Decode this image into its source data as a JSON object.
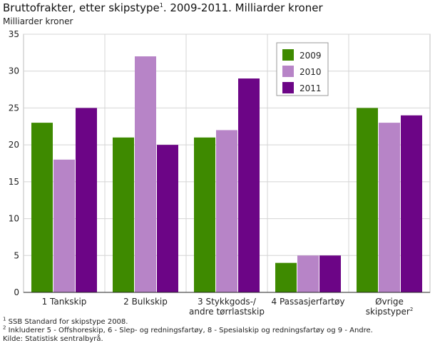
{
  "title": "Bruttofrakter, etter skipstype",
  "title_note": "1",
  "title_rest": ". 2009-2011. Milliarder kroner",
  "chart_data": {
    "type": "bar",
    "ylabel": "Milliarder kroner",
    "xlabel": "",
    "ylim": [
      0,
      35
    ],
    "yticks": [
      0,
      5,
      10,
      15,
      20,
      25,
      30,
      35
    ],
    "grid": true,
    "legend_position": "top-right",
    "categories": [
      [
        "1 Tankskip"
      ],
      [
        "2 Bulkskip"
      ],
      [
        "3 Stykkgods-/",
        "andre tørrlastskip"
      ],
      [
        "4 Passasjerfartøy"
      ],
      [
        "Øvrige",
        "skipstyper"
      ]
    ],
    "category_notes": [
      "",
      "",
      "",
      "",
      "2"
    ],
    "series": [
      {
        "name": "2009",
        "color": "#3e8a00",
        "values": [
          23,
          21,
          21,
          4,
          25
        ]
      },
      {
        "name": "2010",
        "color": "#b784c7",
        "values": [
          18,
          32,
          22,
          5,
          23
        ]
      },
      {
        "name": "2011",
        "color": "#6c0586",
        "values": [
          25,
          20,
          29,
          5,
          24
        ]
      }
    ]
  },
  "footnotes": [
    {
      "mark": "1",
      "text": " SSB Standard for skipstype 2008."
    },
    {
      "mark": "2",
      "text": " Inkluderer 5 - Offshoreskip, 6 - Slep- og redningsfartøy, 8 - Spesialskip og redningsfartøy og 9 - Andre."
    },
    {
      "mark": "",
      "text": "Kilde: Statistisk sentralbyrå."
    }
  ]
}
